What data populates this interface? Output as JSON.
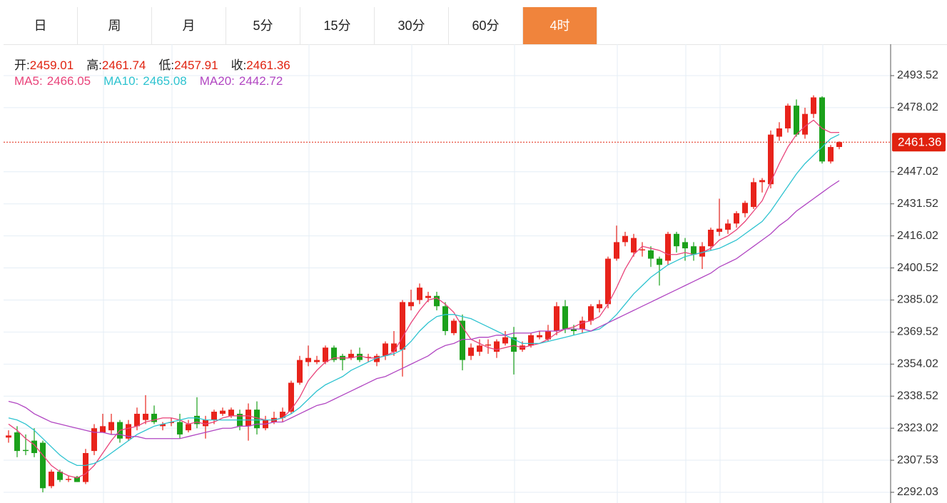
{
  "chart_data": {
    "type": "candlestick",
    "tabs": [
      "日",
      "周",
      "月",
      "5分",
      "15分",
      "30分",
      "60分",
      "4时"
    ],
    "active_tab": 7,
    "ohlc_labels": [
      "开:",
      "高:",
      "低:",
      "收:"
    ],
    "up_color": "#e8231b",
    "down_color": "#1ba11b",
    "price_color": "#e0220f",
    "candles": {
      "open": [
        2318.5,
        2321,
        2312.5,
        2317,
        2316,
        2295,
        2302,
        2298,
        2299.5,
        2297,
        2312,
        2321,
        2322,
        2326,
        2318,
        2324,
        2327,
        2330,
        2324,
        2325.5,
        2326,
        2322,
        2329,
        2324,
        2327,
        2330,
        2329,
        2330,
        2324,
        2332,
        2323,
        2326,
        2328,
        2331,
        2345,
        2355,
        2355,
        2355,
        2362,
        2358,
        2357,
        2359,
        2357,
        2355,
        2358,
        2360,
        2361,
        2382,
        2385,
        2386,
        2387,
        2382,
        2369,
        2375,
        2358,
        2360,
        2363,
        2360,
        2364,
        2367,
        2361,
        2363,
        2367,
        2366,
        2370,
        2382,
        2371,
        2371,
        2375,
        2381,
        2383,
        2405,
        2413,
        2408,
        2409,
        2409,
        2405,
        2404,
        2417,
        2413,
        2411,
        2406,
        2411,
        2418,
        2419,
        2422,
        2427,
        2430,
        2442,
        2441,
        2464,
        2468,
        2479,
        2465,
        2475,
        2483,
        2452,
        2459.01
      ],
      "high": [
        2322,
        2324,
        2320,
        2323,
        2317,
        2303,
        2303,
        2300,
        2300,
        2313,
        2325,
        2330,
        2330,
        2327,
        2327,
        2333,
        2339,
        2334,
        2326,
        2328,
        2330,
        2327,
        2338,
        2329,
        2332,
        2333,
        2333,
        2332,
        2335,
        2336,
        2329,
        2331,
        2333,
        2346,
        2358,
        2363,
        2358,
        2363,
        2363,
        2359,
        2361,
        2362,
        2359,
        2359,
        2365,
        2370,
        2385,
        2390,
        2393,
        2389,
        2389,
        2384,
        2376,
        2378,
        2364,
        2366,
        2366,
        2366,
        2370,
        2372,
        2365,
        2369,
        2370,
        2373,
        2384,
        2385,
        2373,
        2377,
        2383,
        2385,
        2406,
        2421,
        2418,
        2417,
        2413,
        2411,
        2406,
        2418,
        2418,
        2415,
        2413,
        2413,
        2420,
        2434,
        2424,
        2428,
        2433,
        2444,
        2444,
        2467,
        2471,
        2480,
        2482,
        2478,
        2484,
        2483.5,
        2460,
        2461.74
      ],
      "low": [
        2316,
        2309,
        2310,
        2309,
        2292,
        2294,
        2297,
        2297,
        2297,
        2296,
        2310,
        2321,
        2320,
        2316,
        2317,
        2322,
        2325,
        2325,
        2322,
        2324,
        2318,
        2321,
        2323,
        2318,
        2325,
        2329,
        2328,
        2322,
        2317,
        2320,
        2322,
        2325,
        2326,
        2330,
        2344,
        2353,
        2354,
        2354,
        2355,
        2351,
        2356,
        2355,
        2355,
        2353,
        2356,
        2358,
        2348,
        2380,
        2383,
        2384,
        2380,
        2368,
        2368,
        2351,
        2356,
        2358,
        2359,
        2357,
        2363,
        2349,
        2360,
        2362,
        2366,
        2365,
        2368,
        2369,
        2368,
        2369,
        2373,
        2379,
        2381,
        2404,
        2411,
        2406,
        2406,
        2401,
        2392,
        2402,
        2408,
        2404,
        2404,
        2400,
        2409,
        2416,
        2417,
        2420,
        2425,
        2429,
        2437,
        2439,
        2462,
        2466,
        2464,
        2463,
        2473,
        2451,
        2451,
        2457.91
      ],
      "close": [
        2319.5,
        2312,
        2312,
        2311,
        2294,
        2302,
        2298,
        2298.5,
        2297,
        2311,
        2323,
        2324,
        2326,
        2318,
        2325,
        2330,
        2330,
        2326,
        2325,
        2326,
        2320,
        2325,
        2325,
        2327,
        2331,
        2331.5,
        2332,
        2324,
        2332,
        2323,
        2327,
        2328,
        2331,
        2345,
        2356,
        2357,
        2356,
        2362,
        2356,
        2356,
        2359,
        2356,
        2357.5,
        2358,
        2364,
        2364,
        2384,
        2384,
        2391,
        2387,
        2382,
        2370,
        2375,
        2356,
        2362,
        2363,
        2363.5,
        2365,
        2367,
        2360,
        2363,
        2368,
        2368,
        2370,
        2382,
        2371,
        2370,
        2375,
        2382,
        2383,
        2405,
        2413,
        2416,
        2415,
        2409.5,
        2405,
        2402,
        2417,
        2411,
        2410,
        2407,
        2411,
        2419,
        2419.5,
        2422,
        2427,
        2432,
        2442,
        2443,
        2465,
        2468,
        2479,
        2465,
        2475,
        2483,
        2452,
        2459,
        2461.36
      ]
    },
    "ma_series": [
      {
        "name": "MA5:",
        "color": "#e9437a",
        "values": [
          2325,
          2322,
          2318,
          2315,
          2310,
          2305,
          2302,
          2300,
          2299,
          2301,
          2305,
          2311,
          2317,
          2322,
          2323,
          2324,
          2326,
          2327,
          2328,
          2328,
          2327,
          2325,
          2326,
          2325,
          2326,
          2328,
          2329,
          2329,
          2329,
          2328,
          2327,
          2327,
          2328,
          2332,
          2338,
          2346,
          2351,
          2355,
          2357,
          2357,
          2357,
          2358,
          2357,
          2357,
          2358,
          2360,
          2367,
          2374,
          2380,
          2385,
          2386,
          2383,
          2379,
          2372,
          2366,
          2364,
          2362,
          2361,
          2362,
          2363,
          2362,
          2363,
          2364,
          2366,
          2369,
          2371,
          2372,
          2374,
          2375,
          2377,
          2383,
          2391,
          2400,
          2407,
          2411,
          2410,
          2409,
          2407,
          2407,
          2408,
          2407,
          2408,
          2410,
          2414,
          2416,
          2419,
          2423,
          2428,
          2433,
          2442,
          2451,
          2459,
          2465,
          2469,
          2472,
          2468,
          2466,
          2466.05
        ]
      },
      {
        "name": "MA10:",
        "color": "#2ec3d0",
        "values": [
          2328,
          2327,
          2325,
          2322,
          2318,
          2314,
          2310,
          2307,
          2305,
          2305,
          2306,
          2308,
          2311,
          2314,
          2317,
          2320,
          2322,
          2324,
          2325,
          2326,
          2327,
          2328,
          2328,
          2327,
          2327,
          2327,
          2327,
          2327,
          2327,
          2327,
          2327,
          2327,
          2328,
          2330,
          2333,
          2337,
          2341,
          2344,
          2346,
          2348,
          2351,
          2353,
          2355,
          2357,
          2358,
          2359,
          2361,
          2365,
          2370,
          2374,
          2377,
          2378,
          2378,
          2377,
          2376,
          2374,
          2372,
          2370,
          2368,
          2366,
          2364,
          2364,
          2364,
          2365,
          2366,
          2367,
          2368,
          2369,
          2370,
          2371,
          2374,
          2378,
          2383,
          2388,
          2392,
          2396,
          2399,
          2402,
          2404,
          2406,
          2407,
          2408,
          2409,
          2410,
          2412,
          2414,
          2417,
          2420,
          2423,
          2428,
          2434,
          2440,
          2446,
          2451,
          2455,
          2459,
          2463,
          2465.08
        ]
      },
      {
        "name": "MA20:",
        "color": "#b146c2",
        "values": [
          2336,
          2335,
          2333,
          2330,
          2328,
          2326,
          2325,
          2324,
          2323,
          2322,
          2321,
          2321,
          2320,
          2320,
          2319,
          2319,
          2318,
          2318,
          2318,
          2318,
          2318,
          2319,
          2320,
          2321,
          2322,
          2323,
          2323,
          2324,
          2324,
          2325,
          2325,
          2326,
          2326,
          2328,
          2330,
          2332,
          2334,
          2335,
          2337,
          2339,
          2341,
          2343,
          2345,
          2347,
          2348,
          2350,
          2352,
          2354,
          2356,
          2358,
          2361,
          2363,
          2364,
          2366,
          2366,
          2367,
          2367,
          2368,
          2368,
          2369,
          2369,
          2369,
          2370,
          2370,
          2370,
          2371,
          2371,
          2371,
          2370,
          2372,
          2374,
          2376,
          2378,
          2380,
          2382,
          2384,
          2386,
          2388,
          2390,
          2392,
          2394,
          2396,
          2398,
          2401,
          2403,
          2405,
          2408,
          2411,
          2414,
          2417,
          2421,
          2424,
          2428,
          2431,
          2434,
          2437,
          2440,
          2442.72
        ]
      }
    ],
    "ylim": [
      2286.85,
      2508.7
    ],
    "yticks": [
      2292.03,
      2307.53,
      2323.02,
      2338.52,
      2354.02,
      2369.52,
      2385.02,
      2400.52,
      2416.02,
      2431.52,
      2447.02,
      2478.02,
      2493.52
    ],
    "grid": true
  }
}
